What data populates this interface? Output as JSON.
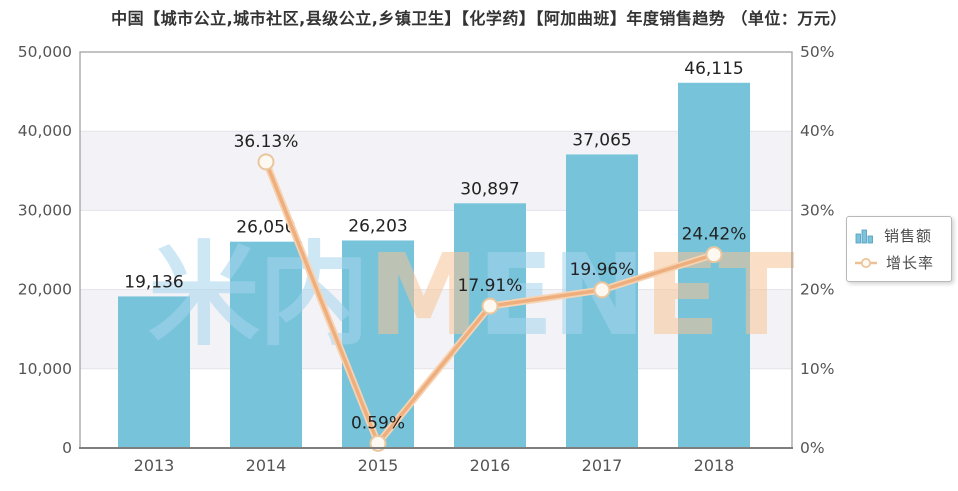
{
  "title": "中国【城市公立,城市社区,县级公立,乡镇卫生】【化学药】【阿加曲班】年度销售趋势 （单位：万元）",
  "legend": {
    "items": [
      {
        "label": "销售额",
        "marker": "bar-chart-icon"
      },
      {
        "label": "增长率",
        "marker": "line-marker-icon"
      }
    ]
  },
  "watermark": {
    "parts": [
      {
        "text": "米内",
        "color": "rgba(166,212,236,0.55)"
      },
      {
        "text": "M",
        "color": "rgba(246,195,150,0.55)"
      },
      {
        "text": "EN",
        "color": "rgba(166,212,236,0.55)"
      },
      {
        "text": "ET",
        "color": "rgba(246,195,150,0.55)"
      }
    ]
  },
  "chart_data": {
    "type": "bar+line combo",
    "title": "中国【城市公立,城市社区,县级公立,乡镇卫生】【化学药】【阿加曲班】年度销售趋势 （单位：万元）",
    "unit": "万元",
    "categories": [
      "2013",
      "2014",
      "2015",
      "2016",
      "2017",
      "2018"
    ],
    "series": [
      {
        "name": "销售额",
        "type": "bar",
        "axis": "left",
        "values": [
          19136,
          26050,
          26203,
          30897,
          37065,
          46115
        ],
        "labels": [
          "19,136",
          "26,050",
          "26,203",
          "30,897",
          "37,065",
          "46,115"
        ],
        "color": "#77c4da"
      },
      {
        "name": "增长率",
        "type": "line",
        "axis": "right",
        "values": [
          null,
          36.13,
          0.59,
          17.91,
          19.96,
          24.42
        ],
        "labels": [
          null,
          "36.13%",
          "0.59%",
          "17.91%",
          "19.96%",
          "24.42%"
        ],
        "color": "#efae7e",
        "line_halo_color": "#f6d3b2",
        "marker_fill": "#fdf8f0",
        "marker_stroke": "#e9c69e"
      }
    ],
    "left_axis": {
      "min": 0,
      "max": 50000,
      "tick_labels": [
        "0",
        "10,000",
        "20,000",
        "30,000",
        "40,000",
        "50,000"
      ]
    },
    "right_axis": {
      "min": 0,
      "max": 50,
      "tick_labels": [
        "0%",
        "10%",
        "20%",
        "30%",
        "40%",
        "50%"
      ]
    },
    "legend_position": "right",
    "grid": "alternating horizontal bands",
    "colors": {
      "band": "#f3f3f7",
      "band_line": "#e3e3e9",
      "border": "#9a9a9a",
      "bottom_axis": "#7f7f7f",
      "tick_text": "#555555",
      "data_label_text": "#222222"
    }
  }
}
